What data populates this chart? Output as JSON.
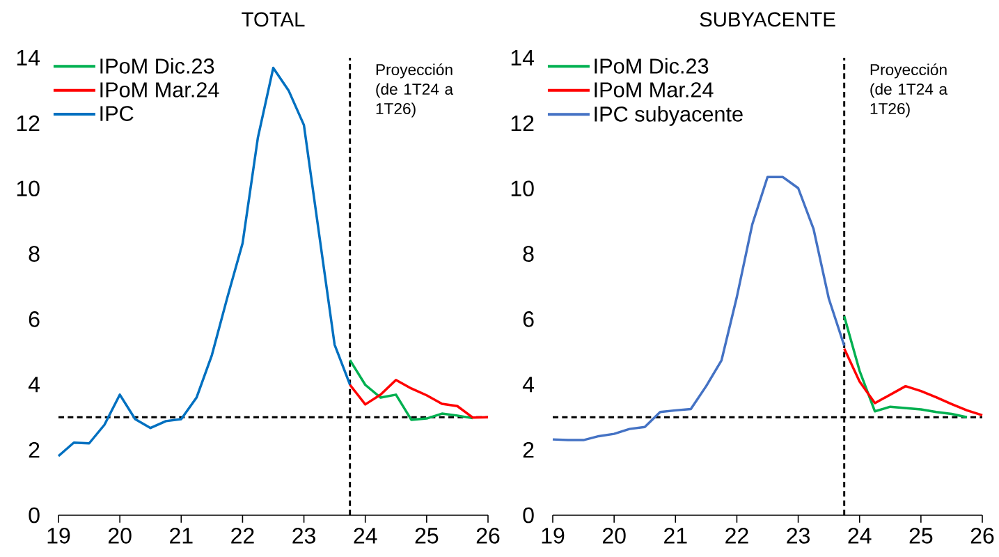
{
  "chart_data": [
    {
      "type": "line",
      "title": "TOTAL",
      "xlim": [
        19,
        26
      ],
      "xticks": [
        19,
        20,
        21,
        22,
        23,
        24,
        25,
        26
      ],
      "ylim": [
        0,
        14
      ],
      "yticks": [
        0,
        2,
        4,
        6,
        8,
        10,
        12,
        14
      ],
      "legend": "top left",
      "series": [
        {
          "name": "IPoM Dic.23",
          "color": "#00b050",
          "x": [
            23.75,
            24,
            24.25,
            24.5,
            24.75,
            25,
            25.25,
            25.5,
            25.75
          ],
          "values": [
            4.75,
            3.99,
            3.6,
            3.69,
            2.92,
            2.96,
            3.11,
            3.05,
            2.97
          ]
        },
        {
          "name": "IPoM Mar.24",
          "color": "#ff0000",
          "x": [
            23.75,
            24,
            24.25,
            24.5,
            24.75,
            25,
            25.25,
            25.5,
            25.75,
            26
          ],
          "values": [
            3.99,
            3.39,
            3.69,
            4.14,
            3.88,
            3.67,
            3.41,
            3.34,
            2.99,
            3.0
          ]
        },
        {
          "name": "IPC",
          "color": "#0070c0",
          "x": [
            19,
            19.25,
            19.5,
            19.75,
            20,
            20.25,
            20.5,
            20.75,
            21,
            21.25,
            21.5,
            21.75,
            22,
            22.25,
            22.5,
            22.75,
            23,
            23.25,
            23.5,
            23.75
          ],
          "values": [
            1.81,
            2.22,
            2.2,
            2.77,
            3.69,
            2.94,
            2.67,
            2.88,
            2.94,
            3.6,
            4.9,
            6.65,
            8.32,
            11.56,
            13.69,
            13.0,
            11.94,
            8.57,
            5.22,
            4.0
          ]
        }
      ],
      "ref_lines": [
        {
          "axis": "y",
          "value": 3,
          "color": "#000000",
          "line_style": "dashed"
        },
        {
          "axis": "x",
          "value": 23.75,
          "color": "#000000",
          "line_style": "dashed"
        }
      ],
      "annotations": [
        "Proyección (de 1T24 a 1T26)"
      ]
    },
    {
      "type": "line",
      "title": "SUBYACENTE",
      "xlim": [
        19,
        26
      ],
      "xticks": [
        19,
        20,
        21,
        22,
        23,
        24,
        25,
        26
      ],
      "ylim": [
        0,
        14
      ],
      "yticks": [
        0,
        2,
        4,
        6,
        8,
        10,
        12,
        14
      ],
      "legend": "top left",
      "series": [
        {
          "name": "IPoM Dic.23",
          "color": "#00b050",
          "x": [
            23.75,
            24,
            24.25,
            24.5,
            24.75,
            25,
            25.25,
            25.5,
            25.75
          ],
          "values": [
            6.09,
            4.42,
            3.18,
            3.32,
            3.28,
            3.24,
            3.16,
            3.1,
            3.0
          ]
        },
        {
          "name": "IPoM Mar.24",
          "color": "#ff0000",
          "x": [
            23.75,
            24,
            24.25,
            24.5,
            24.75,
            25,
            25.25,
            25.5,
            25.75,
            26
          ],
          "values": [
            5.1,
            4.09,
            3.43,
            3.69,
            3.95,
            3.8,
            3.61,
            3.4,
            3.21,
            3.06
          ]
        },
        {
          "name": "IPC subyacente",
          "color": "#4472c4",
          "x": [
            19,
            19.25,
            19.5,
            19.75,
            20,
            20.25,
            20.5,
            20.75,
            21,
            21.25,
            21.5,
            21.75,
            22,
            22.25,
            22.5,
            22.75,
            23,
            23.25,
            23.5,
            23.75
          ],
          "values": [
            2.32,
            2.3,
            2.3,
            2.42,
            2.49,
            2.64,
            2.7,
            3.16,
            3.21,
            3.25,
            3.95,
            4.74,
            6.68,
            8.89,
            10.35,
            10.35,
            10.01,
            8.76,
            6.62,
            5.19
          ]
        }
      ],
      "ref_lines": [
        {
          "axis": "y",
          "value": 3,
          "color": "#000000",
          "line_style": "dashed"
        },
        {
          "axis": "x",
          "value": 23.75,
          "color": "#000000",
          "line_style": "dashed"
        }
      ],
      "annotations": [
        "Proyección (de 1T24 a 1T26)"
      ]
    }
  ]
}
